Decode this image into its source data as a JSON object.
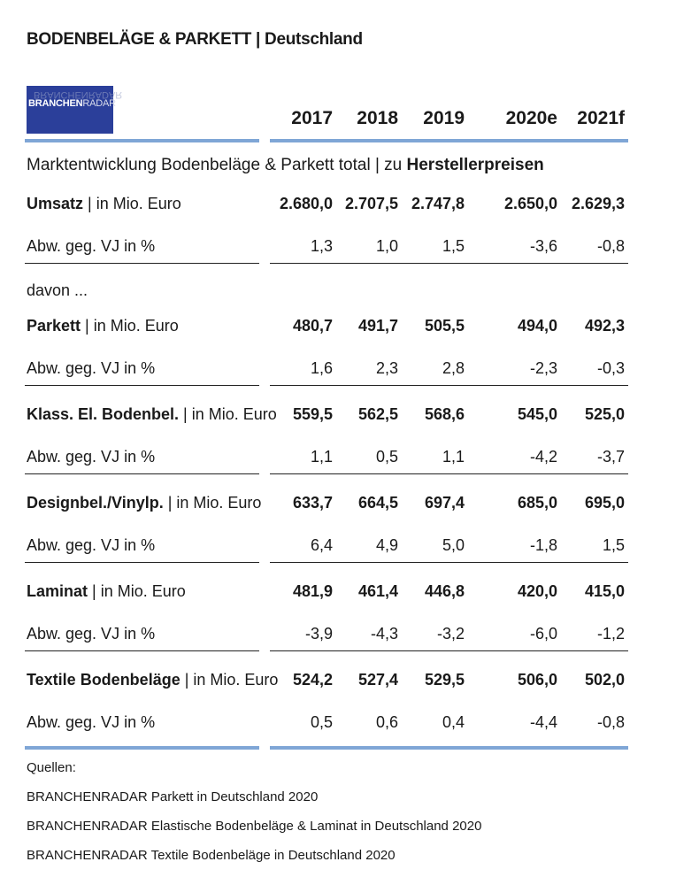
{
  "title": "BODENBELÄGE & PARKETT | Deutschland",
  "logo": {
    "part1": "BRANCHEN",
    "part2": "RADAR",
    "reflection": "BRANCHENRADAR"
  },
  "years": [
    "2017",
    "2018",
    "2019",
    "2020e",
    "2021f"
  ],
  "subtitle": {
    "prefix": "Marktentwicklung Bodenbeläge & Parkett total | zu ",
    "emphasis": "Herstellerpreisen"
  },
  "davon": "davon ...",
  "chart_data": {
    "type": "table",
    "title": "BODENBELÄGE & PARKETT | Deutschland",
    "subtitle": "Marktentwicklung Bodenbeläge & Parkett total | zu Herstellerpreisen",
    "columns": [
      "2017",
      "2018",
      "2019",
      "2020e",
      "2021f"
    ],
    "rows": [
      {
        "name": "Umsatz",
        "unit": "| in Mio. Euro",
        "kind": "value",
        "cells": [
          "2.680,0",
          "2.707,5",
          "2.747,8",
          "2.650,0",
          "2.629,3"
        ]
      },
      {
        "name": "Abw. geg. VJ in %",
        "unit": "",
        "kind": "change",
        "cells": [
          "1,3",
          "1,0",
          "1,5",
          "-3,6",
          "-0,8"
        ]
      },
      {
        "name": "Parkett",
        "unit": "| in Mio. Euro",
        "kind": "value",
        "cells": [
          "480,7",
          "491,7",
          "505,5",
          "494,0",
          "492,3"
        ]
      },
      {
        "name": "Abw. geg. VJ in %",
        "unit": "",
        "kind": "change",
        "cells": [
          "1,6",
          "2,3",
          "2,8",
          "-2,3",
          "-0,3"
        ]
      },
      {
        "name": "Klass. El. Bodenbel.",
        "unit": "| in Mio. Euro",
        "kind": "value",
        "cells": [
          "559,5",
          "562,5",
          "568,6",
          "545,0",
          "525,0"
        ]
      },
      {
        "name": "Abw. geg. VJ in %",
        "unit": "",
        "kind": "change",
        "cells": [
          "1,1",
          "0,5",
          "1,1",
          "-4,2",
          "-3,7"
        ]
      },
      {
        "name": "Designbel./Vinylp.",
        "unit": "| in Mio. Euro",
        "kind": "value",
        "cells": [
          "633,7",
          "664,5",
          "697,4",
          "685,0",
          "695,0"
        ]
      },
      {
        "name": "Abw. geg. VJ in %",
        "unit": "",
        "kind": "change",
        "cells": [
          "6,4",
          "4,9",
          "5,0",
          "-1,8",
          "1,5"
        ]
      },
      {
        "name": "Laminat",
        "unit": "| in Mio. Euro",
        "kind": "value",
        "cells": [
          "481,9",
          "461,4",
          "446,8",
          "420,0",
          "415,0"
        ]
      },
      {
        "name": "Abw. geg. VJ in %",
        "unit": "",
        "kind": "change",
        "cells": [
          "-3,9",
          "-4,3",
          "-3,2",
          "-6,0",
          "-1,2"
        ]
      },
      {
        "name": "Textile Bodenbeläge",
        "unit": "| in Mio. Euro",
        "kind": "value",
        "cells": [
          "524,2",
          "527,4",
          "529,5",
          "506,0",
          "502,0"
        ]
      },
      {
        "name": "Abw. geg. VJ in %",
        "unit": "",
        "kind": "change",
        "cells": [
          "0,5",
          "0,6",
          "0,4",
          "-4,4",
          "-0,8"
        ]
      }
    ]
  },
  "sources": [
    "Quellen:",
    "BRANCHENRADAR Parkett in Deutschland 2020",
    "BRANCHENRADAR Elastische Bodenbeläge & Laminat in Deutschland 2020",
    "BRANCHENRADAR Textile Bodenbeläge in Deutschland 2020"
  ],
  "colors": {
    "accent_bar": "#7fa6d6",
    "logo_bg": "#2b3f9a",
    "text": "#1a1a1a"
  }
}
